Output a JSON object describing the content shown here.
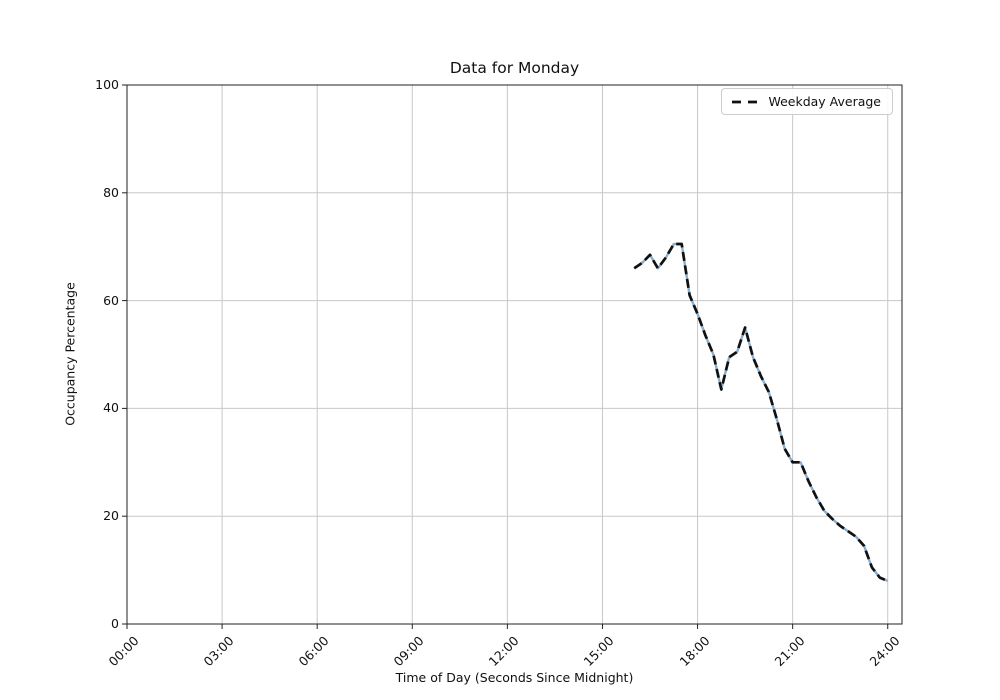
{
  "figure": {
    "background": "#ffffff"
  },
  "chart_data": {
    "type": "line",
    "title": "Data for Monday",
    "xlabel": "Time of Day (Seconds Since Midnight)",
    "ylabel": "Occupancy Percentage",
    "grid": true,
    "grid_color": "#c8c8c8",
    "spine_color": "#222222",
    "x_axis": {
      "tick_labels": [
        "00:00",
        "03:00",
        "06:00",
        "09:00",
        "12:00",
        "15:00",
        "18:00",
        "21:00",
        "24:00"
      ],
      "tick_hours": [
        0,
        3,
        6,
        9,
        12,
        15,
        18,
        21,
        24
      ],
      "range_hours": [
        0,
        24.45
      ]
    },
    "y_axis": {
      "tick_labels": [
        "0",
        "20",
        "40",
        "60",
        "80",
        "100"
      ],
      "tick_values": [
        0,
        20,
        40,
        60,
        80,
        100
      ],
      "range": [
        0,
        100
      ]
    },
    "legend": {
      "position": "upper-right",
      "entries": [
        {
          "label": "Weekday Average",
          "line_style": "dashed",
          "color": "#111111"
        }
      ]
    },
    "series": [
      {
        "name": "Monday",
        "line_style": "solid",
        "color": "#87afd2",
        "x_hours": [
          16,
          16.25,
          16.5,
          16.75,
          17,
          17.25,
          17.5,
          17.75,
          18,
          18.25,
          18.5,
          18.75,
          19,
          19.25,
          19.5,
          19.75,
          20,
          20.25,
          20.5,
          20.75,
          21,
          21.25,
          21.5,
          21.75,
          22,
          22.25,
          22.5,
          22.75,
          23,
          23.25,
          23.5,
          23.75,
          24
        ],
        "values": [
          66,
          67,
          68.5,
          66,
          68,
          70.5,
          70.5,
          61,
          57.5,
          53.5,
          50,
          43.5,
          49.5,
          50.5,
          55,
          49.5,
          46,
          43,
          38,
          32.5,
          30,
          30,
          26.5,
          23.5,
          21,
          19.5,
          18.2,
          17.2,
          16.2,
          14.5,
          10.5,
          8.6,
          8
        ]
      },
      {
        "name": "Weekday Average",
        "line_style": "dashed",
        "color": "#111111",
        "x_hours": [
          16,
          16.25,
          16.5,
          16.75,
          17,
          17.25,
          17.5,
          17.75,
          18,
          18.25,
          18.5,
          18.75,
          19,
          19.25,
          19.5,
          19.75,
          20,
          20.25,
          20.5,
          20.75,
          21,
          21.25,
          21.5,
          21.75,
          22,
          22.25,
          22.5,
          22.75,
          23,
          23.25,
          23.5,
          23.75,
          24
        ],
        "values": [
          66,
          67,
          68.5,
          66,
          68,
          70.5,
          70.5,
          61,
          57.5,
          53.5,
          50,
          43.5,
          49.5,
          50.5,
          55,
          49.5,
          46,
          43,
          38,
          32.5,
          30,
          30,
          26.5,
          23.5,
          21,
          19.5,
          18.2,
          17.2,
          16.2,
          14.5,
          10.5,
          8.6,
          8
        ]
      }
    ]
  }
}
